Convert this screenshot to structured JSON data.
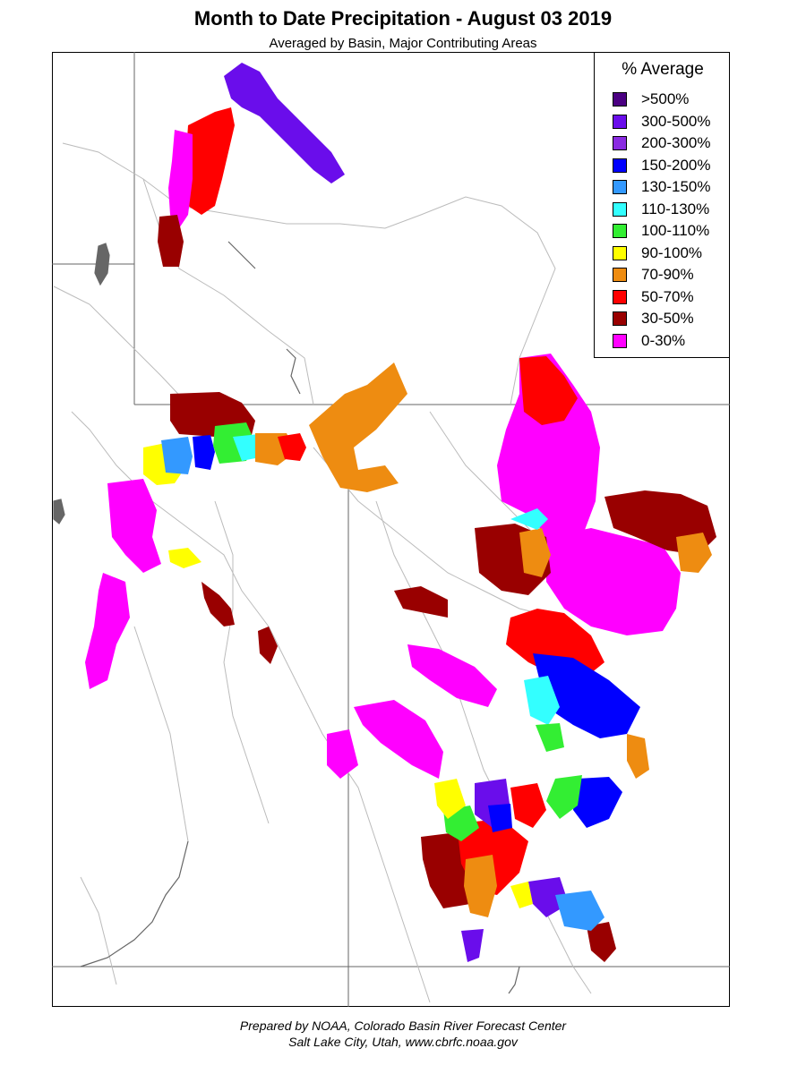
{
  "title": "Month to Date Precipitation - August 03 2019",
  "subtitle": "Averaged by Basin, Major Contributing Areas",
  "legend": {
    "title": "% Average",
    "items": [
      {
        "label": ">500%",
        "color": "#4B0082"
      },
      {
        "label": "300-500%",
        "color": "#6A0DEB"
      },
      {
        "label": "200-300%",
        "color": "#8A2BE2"
      },
      {
        "label": "150-200%",
        "color": "#0000FF"
      },
      {
        "label": "130-150%",
        "color": "#3399FF"
      },
      {
        "label": "110-130%",
        "color": "#33FFFF"
      },
      {
        "label": "100-110%",
        "color": "#33EE33"
      },
      {
        "label": "90-100%",
        "color": "#FFFF00"
      },
      {
        "label": "70-90%",
        "color": "#EE8C11"
      },
      {
        "label": "50-70%",
        "color": "#FF0000"
      },
      {
        "label": "30-50%",
        "color": "#990000"
      },
      {
        "label": "0-30%",
        "color": "#FF00FF"
      }
    ]
  },
  "footer": {
    "line1": "Prepared by NOAA, Colorado Basin River Forecast Center",
    "line2": "Salt Lake City, Utah, www.cbrfc.noaa.gov"
  },
  "map": {
    "border_color": "#666666",
    "river_color": "#bbbbbb",
    "water_color": "#666666",
    "basins": [
      {
        "category": "300-500%",
        "name": "northwest-upper-basin"
      },
      {
        "category": "50-70%",
        "name": "northwest-mid-basin"
      },
      {
        "category": "0-30%",
        "name": "northwest-lower-basin"
      },
      {
        "category": "30-50%",
        "name": "northwest-small-basin"
      },
      {
        "category": "30-50%",
        "name": "north-central-red-basin"
      },
      {
        "category": "90-100%",
        "name": "north-central-yellow-basin"
      },
      {
        "category": "130-150%",
        "name": "north-central-lightblue-basin"
      },
      {
        "category": "150-200%",
        "name": "north-central-blue-basin"
      },
      {
        "category": "100-110%",
        "name": "north-central-green-basin"
      },
      {
        "category": "110-130%",
        "name": "north-central-cyan-basin"
      },
      {
        "category": "70-90%",
        "name": "north-central-orange-basin"
      },
      {
        "category": "50-70%",
        "name": "north-central-red2-basin"
      },
      {
        "category": "70-90%",
        "name": "central-orange-basin"
      },
      {
        "category": "0-30%",
        "name": "west-magenta-basin"
      },
      {
        "category": "30-50%",
        "name": "west-darkred-basin"
      },
      {
        "category": "0-30%",
        "name": "east-magenta-basin"
      },
      {
        "category": "50-70%",
        "name": "east-red-basin"
      },
      {
        "category": "30-50%",
        "name": "east-darkred-basin"
      },
      {
        "category": "70-90%",
        "name": "east-orange-basin"
      },
      {
        "category": "150-200%",
        "name": "southeast-blue-basin"
      },
      {
        "category": "110-130%",
        "name": "southeast-cyan-basin"
      },
      {
        "category": "0-30%",
        "name": "south-central-magenta-basin"
      },
      {
        "category": "30-50%",
        "name": "south-darkred-basin"
      },
      {
        "category": "50-70%",
        "name": "south-red-basin"
      },
      {
        "category": "100-110%",
        "name": "south-green-basin"
      },
      {
        "category": "300-500%",
        "name": "south-purple-basin"
      },
      {
        "category": "130-150%",
        "name": "south-lightblue-basin"
      }
    ]
  }
}
